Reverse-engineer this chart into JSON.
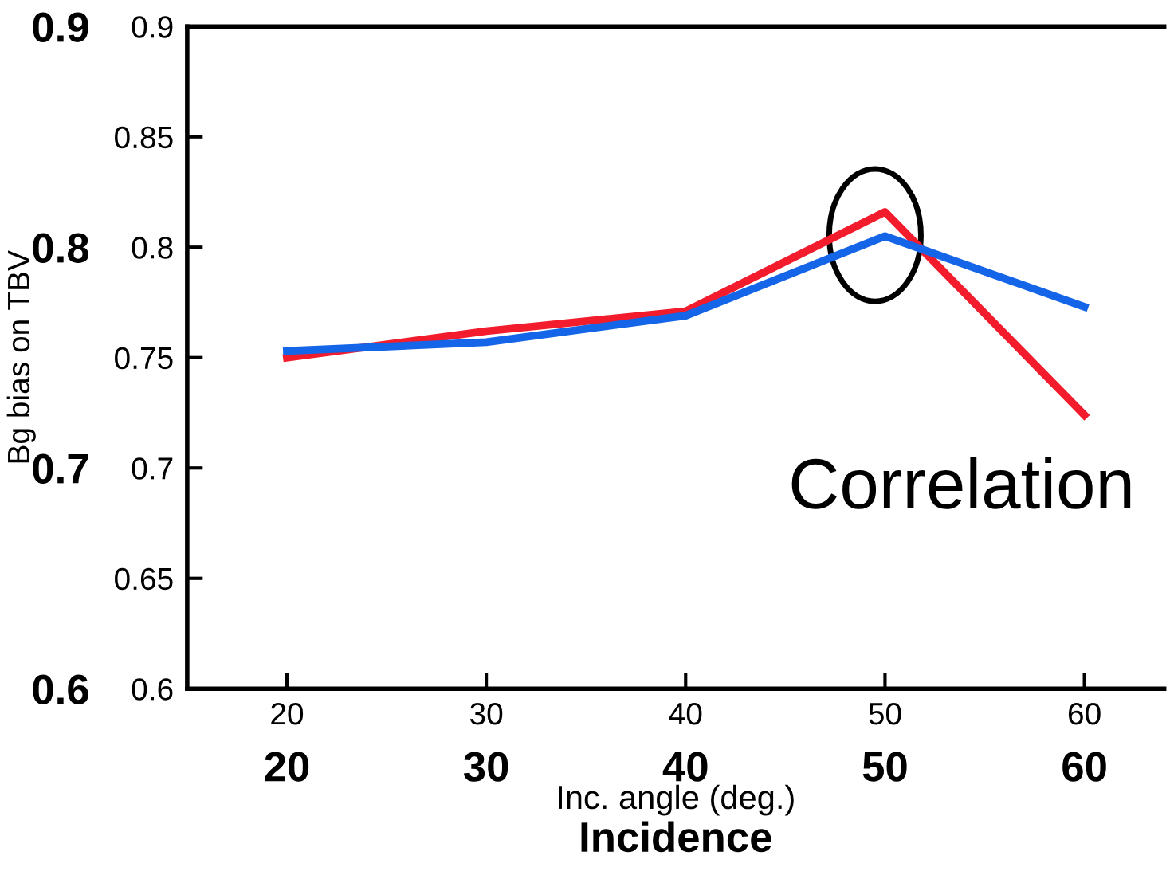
{
  "chart_data": {
    "type": "line",
    "xlabel": "Inc. angle (deg.)",
    "ylabel": "Bg bias on TBV",
    "x2label": "Incidence",
    "x": [
      20,
      30,
      40,
      50,
      60
    ],
    "series": [
      {
        "color": "#f21c2d",
        "values": [
          0.75,
          0.762,
          0.771,
          0.816,
          0.724
        ]
      },
      {
        "color": "#1565e8",
        "values": [
          0.753,
          0.757,
          0.769,
          0.805,
          0.773
        ]
      }
    ],
    "xlim": [
      15,
      64
    ],
    "xticks": [
      20,
      30,
      40,
      50,
      60
    ],
    "x2lim": [
      15,
      64
    ],
    "x2ticks": [
      20,
      30,
      40,
      50,
      60
    ],
    "ylim": [
      0.6,
      0.9
    ],
    "yticks": [
      0.6,
      0.7,
      0.8,
      0.9
    ],
    "y2lim": [
      0.6,
      0.9
    ],
    "y2ticks": [
      0.6,
      0.65,
      0.7,
      0.75,
      0.8,
      0.85,
      0.9
    ],
    "annotations": [
      "Correlation"
    ],
    "grid": false,
    "legend": false,
    "marker": "none",
    "line_style": "solid"
  }
}
